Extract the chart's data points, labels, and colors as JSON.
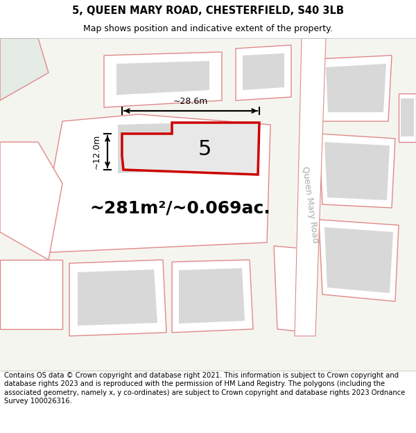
{
  "title_line1": "5, QUEEN MARY ROAD, CHESTERFIELD, S40 3LB",
  "title_line2": "Map shows position and indicative extent of the property.",
  "footer_text": "Contains OS data © Crown copyright and database right 2021. This information is subject to Crown copyright and database rights 2023 and is reproduced with the permission of HM Land Registry. The polygons (including the associated geometry, namely x, y co-ordinates) are subject to Crown copyright and database rights 2023 Ordnance Survey 100026316.",
  "area_label": "~281m²/~0.069ac.",
  "property_number": "5",
  "width_label": "~28.6m",
  "height_label": "~12.0m",
  "road_label": "Queen Mary Road",
  "map_bg": "#f5f5f0",
  "building_color": "#d8d8d8",
  "boundary_color": "#e08888",
  "highlight_color": "#cc0000",
  "highlight_fill": "#e8e8e8",
  "green_color": "#e5ebe5",
  "title_fontsize": 10.5,
  "subtitle_fontsize": 9,
  "footer_fontsize": 7.2,
  "area_fontsize": 18,
  "prop_num_fontsize": 22,
  "dim_fontsize": 9,
  "road_fontsize": 9
}
